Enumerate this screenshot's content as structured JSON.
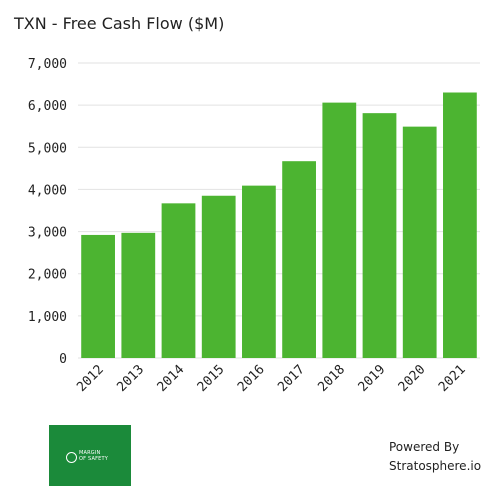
{
  "title": "TXN - Free Cash Flow ($M)",
  "colors": {
    "bar": "#4cb431",
    "grid": "#e2e2e2",
    "logo_bg": "#1b8a3a",
    "text": "#222222"
  },
  "chart_data": {
    "type": "bar",
    "title": "TXN - Free Cash Flow ($M)",
    "xlabel": "",
    "ylabel": "",
    "ylim": [
      0,
      7000
    ],
    "yticks": [
      "0",
      "1,000",
      "2,000",
      "3,000",
      "4,000",
      "5,000",
      "6,000",
      "7,000"
    ],
    "grid": true,
    "categories": [
      "2012",
      "2013",
      "2014",
      "2015",
      "2016",
      "2017",
      "2018",
      "2019",
      "2020",
      "2021"
    ],
    "values": [
      2920,
      2970,
      3670,
      3850,
      4090,
      4670,
      6060,
      5810,
      5490,
      6300
    ]
  },
  "logo": {
    "text": "MARGIN\nOF SAFETY",
    "icon": "margin-of-safety-logo-icon"
  },
  "footer": {
    "powered_line1": "Powered By",
    "powered_line2": "Stratosphere.io"
  }
}
